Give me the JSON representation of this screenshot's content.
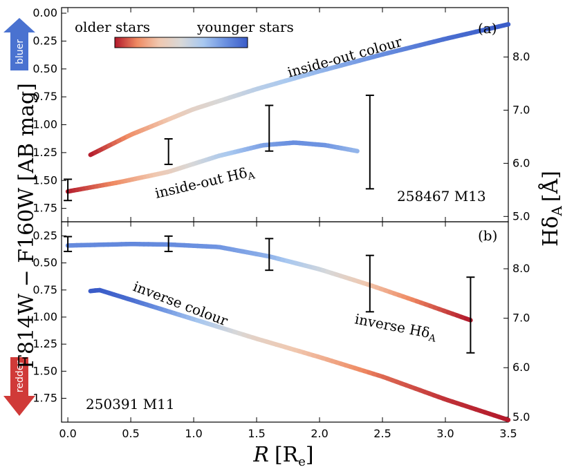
{
  "chart_data": {
    "type": "line",
    "xlabel_var": "R",
    "xlabel_unit": "[R",
    "xlabel_unit_sub": "e",
    "xlabel_close": "]",
    "ylabel_left": "F814W − F160W [AB mag]",
    "ylabel_right_main": "Hδ",
    "ylabel_right_sub": "A",
    "ylabel_right_unit": "[Å]",
    "colorbar": {
      "left_label": "older stars",
      "right_label": "younger stars",
      "colors": [
        "#b2182b",
        "#ef8a62",
        "#f0c8b0",
        "#d8d8d8",
        "#a8c8f0",
        "#6a90e0",
        "#3a5cc8"
      ]
    },
    "arrows": {
      "up_label": "bluer",
      "down_label": "redder",
      "up_color": "#4a72d0",
      "down_color": "#d03a38"
    },
    "x_range": [
      -0.05,
      3.5
    ],
    "x_ticks": [
      "0.0",
      "0.5",
      "1.0",
      "1.5",
      "2.0",
      "2.5",
      "3.0",
      "3.5"
    ],
    "x_tick_values": [
      0.0,
      0.5,
      1.0,
      1.5,
      2.0,
      2.5,
      3.0,
      3.5
    ],
    "panels": [
      {
        "id": "a",
        "tag": "(a)",
        "galaxy_label": "258467 M13",
        "color_axis": {
          "range": [
            -0.05,
            1.87
          ],
          "ticks": [
            "0.00",
            "0.25",
            "0.50",
            "0.75",
            "1.00",
            "1.25",
            "1.50",
            "1.75"
          ],
          "tick_values": [
            0.0,
            0.25,
            0.5,
            0.75,
            1.0,
            1.25,
            1.5,
            1.75
          ]
        },
        "hd_axis": {
          "range": [
            4.9,
            8.93
          ],
          "ticks": [
            "5.0",
            "6.0",
            "7.0",
            "8.0"
          ],
          "tick_values": [
            5.0,
            6.0,
            7.0,
            8.0
          ]
        },
        "colour_curve": {
          "label": "inside-out colour",
          "x": [
            0.18,
            0.5,
            1.0,
            1.5,
            2.0,
            2.5,
            3.0,
            3.5
          ],
          "y": [
            1.27,
            1.09,
            0.86,
            0.68,
            0.52,
            0.37,
            0.23,
            0.1
          ],
          "age": [
            0.0,
            0.18,
            0.42,
            0.6,
            0.72,
            0.84,
            0.94,
            1.0
          ]
        },
        "hd_curve": {
          "label": "inside-out Hδ",
          "label_sub": "A",
          "x": [
            0.0,
            0.4,
            0.8,
            1.2,
            1.55,
            1.8,
            2.05,
            2.3
          ],
          "y": [
            5.47,
            5.64,
            5.84,
            6.14,
            6.34,
            6.39,
            6.34,
            6.23
          ],
          "age": [
            0.0,
            0.18,
            0.38,
            0.62,
            0.78,
            0.84,
            0.82,
            0.72
          ],
          "error_bars": [
            {
              "x": 0.0,
              "y_low": 5.3,
              "y_high": 5.7
            },
            {
              "x": 0.8,
              "y_low": 5.98,
              "y_high": 6.46
            },
            {
              "x": 1.6,
              "y_low": 6.23,
              "y_high": 7.09
            },
            {
              "x": 2.4,
              "y_low": 5.52,
              "y_high": 7.28
            }
          ]
        }
      },
      {
        "id": "b",
        "tag": "(b)",
        "galaxy_label": "250391 M11",
        "color_axis": {
          "range": [
            0.12,
            1.97
          ],
          "ticks": [
            "0.25",
            "0.50",
            "0.75",
            "1.00",
            "1.25",
            "1.50",
            "1.75"
          ],
          "tick_values": [
            0.25,
            0.5,
            0.75,
            1.0,
            1.25,
            1.5,
            1.75
          ]
        },
        "hd_axis": {
          "range": [
            4.9,
            8.95
          ],
          "ticks": [
            "5.0",
            "6.0",
            "7.0",
            "8.0"
          ],
          "tick_values": [
            5.0,
            6.0,
            7.0,
            8.0
          ]
        },
        "colour_curve": {
          "label": "inverse colour",
          "x": [
            0.18,
            0.25,
            0.5,
            1.0,
            1.5,
            2.0,
            2.5,
            3.0,
            3.5
          ],
          "y": [
            0.76,
            0.75,
            0.84,
            1.02,
            1.2,
            1.37,
            1.55,
            1.76,
            1.95
          ],
          "age": [
            1.0,
            1.0,
            0.95,
            0.7,
            0.42,
            0.28,
            0.12,
            0.04,
            0.0
          ]
        },
        "hd_curve": {
          "label": "inverse Hδ",
          "label_sub": "A",
          "x": [
            0.0,
            0.5,
            0.8,
            1.2,
            1.6,
            2.0,
            2.4,
            2.8,
            3.2
          ],
          "y": [
            8.47,
            8.5,
            8.49,
            8.44,
            8.25,
            7.99,
            7.67,
            7.32,
            6.96
          ],
          "age": [
            0.85,
            0.86,
            0.85,
            0.82,
            0.74,
            0.55,
            0.32,
            0.14,
            0.0
          ],
          "error_bars": [
            {
              "x": 0.0,
              "y_low": 8.35,
              "y_high": 8.65
            },
            {
              "x": 0.8,
              "y_low": 8.35,
              "y_high": 8.66
            },
            {
              "x": 1.6,
              "y_low": 7.97,
              "y_high": 8.61
            },
            {
              "x": 2.4,
              "y_low": 7.13,
              "y_high": 8.27
            },
            {
              "x": 3.2,
              "y_low": 6.3,
              "y_high": 7.83
            }
          ]
        }
      }
    ]
  }
}
